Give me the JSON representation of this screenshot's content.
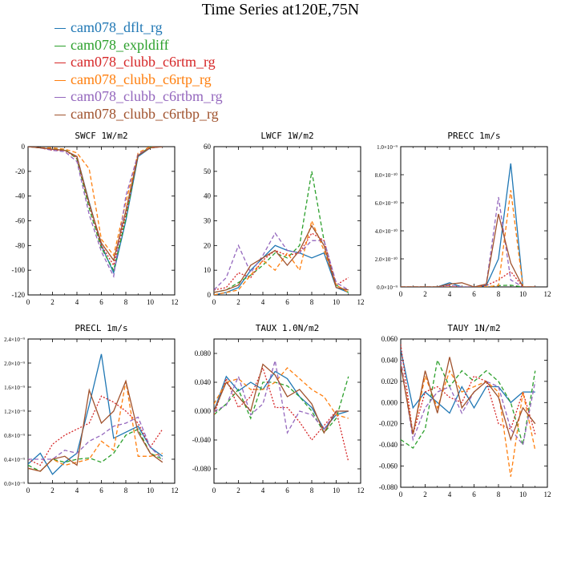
{
  "title": "Time Series at120E,75N",
  "colors": [
    "#1f77b4",
    "#2ca02c",
    "#d62728",
    "#ff7f0e",
    "#9467bd",
    "#a0522d"
  ],
  "styles": [
    "solid",
    "dashed",
    "dotted",
    "dashed",
    "dashed",
    "solid"
  ],
  "legend": [
    {
      "name": "cam078_dflt_rg"
    },
    {
      "name": "cam078_expldiff"
    },
    {
      "name": "cam078_clubb_c6rtm_rg"
    },
    {
      "name": "cam078_clubb_c6rtp_rg"
    },
    {
      "name": "cam078_clubb_c6rtbm_rg"
    },
    {
      "name": "cam078_clubb_c6rtbp_rg"
    }
  ],
  "chart_data": [
    {
      "type": "line",
      "title": "SWCF   1W/m2",
      "xlim": [
        0,
        12
      ],
      "ylim": [
        -120,
        0
      ],
      "xticks": [
        "0",
        "2",
        "4",
        "6",
        "8",
        "10",
        "12"
      ],
      "yticks": [
        {
          "v": 0,
          "t": "0"
        },
        {
          "v": -20,
          "t": "-20"
        },
        {
          "v": -40,
          "t": "-40"
        },
        {
          "v": -60,
          "t": "-60"
        },
        {
          "v": -80,
          "t": "-80"
        },
        {
          "v": -100,
          "t": "-100"
        },
        {
          "v": -120,
          "t": "-120"
        }
      ],
      "x": [
        0,
        1,
        2,
        3,
        4,
        5,
        6,
        7,
        8,
        9,
        10,
        11
      ],
      "series": [
        {
          "values": [
            0,
            -1,
            -2,
            -3,
            -8,
            -45,
            -80,
            -102,
            -60,
            -8,
            -1,
            0
          ]
        },
        {
          "values": [
            0,
            -1,
            -2,
            -2,
            -10,
            -50,
            -82,
            -100,
            -58,
            -7,
            0,
            0
          ]
        },
        {
          "values": [
            0,
            -1,
            -3,
            -3,
            -9,
            -47,
            -80,
            -96,
            -55,
            -7,
            -1,
            0
          ]
        },
        {
          "values": [
            0,
            -1,
            -1,
            -2,
            -5,
            -18,
            -75,
            -88,
            -45,
            -5,
            0,
            0
          ]
        },
        {
          "values": [
            0,
            -1,
            -3,
            -4,
            -12,
            -55,
            -85,
            -105,
            -40,
            -6,
            -1,
            0
          ]
        },
        {
          "values": [
            0,
            -1,
            -2,
            -3,
            -8,
            -46,
            -78,
            -92,
            -52,
            -7,
            -1,
            0
          ]
        }
      ]
    },
    {
      "type": "line",
      "title": "LWCF   1W/m2",
      "xlim": [
        0,
        12
      ],
      "ylim": [
        0,
        60
      ],
      "xticks": [
        "0",
        "2",
        "4",
        "6",
        "8",
        "10",
        "12"
      ],
      "yticks": [
        {
          "v": 0,
          "t": "0"
        },
        {
          "v": 10,
          "t": "10"
        },
        {
          "v": 20,
          "t": "20"
        },
        {
          "v": 30,
          "t": "30"
        },
        {
          "v": 40,
          "t": "40"
        },
        {
          "v": 50,
          "t": "50"
        },
        {
          "v": 60,
          "t": "60"
        }
      ],
      "x": [
        0,
        1,
        2,
        3,
        4,
        5,
        6,
        7,
        8,
        9,
        10,
        11
      ],
      "series": [
        {
          "values": [
            0,
            1,
            3,
            10,
            15,
            20,
            18,
            17,
            15,
            17,
            3,
            1
          ]
        },
        {
          "values": [
            1,
            2,
            5,
            8,
            12,
            17,
            15,
            20,
            50,
            22,
            4,
            1
          ]
        },
        {
          "values": [
            2,
            3,
            9,
            7,
            14,
            18,
            16,
            17,
            25,
            22,
            4,
            7
          ]
        },
        {
          "values": [
            0,
            1,
            2,
            8,
            14,
            10,
            17,
            10,
            30,
            18,
            4,
            1
          ]
        },
        {
          "values": [
            2,
            7,
            20,
            9,
            16,
            25,
            18,
            17,
            22,
            22,
            5,
            2
          ]
        },
        {
          "values": [
            1,
            2,
            4,
            12,
            15,
            18,
            12,
            18,
            28,
            20,
            3,
            2
          ]
        }
      ]
    },
    {
      "type": "line",
      "title": "PRECC   1m/s",
      "xlim": [
        0,
        12
      ],
      "ylim": [
        0,
        1e-09
      ],
      "xticks": [
        "0",
        "2",
        "4",
        "6",
        "8",
        "10",
        "12"
      ],
      "yticks": [
        {
          "v": 0,
          "t": "0.0×10⁻⁹"
        },
        {
          "v": 2e-10,
          "t": "2.0×10⁻¹⁰"
        },
        {
          "v": 4e-10,
          "t": "4.0×10⁻¹⁰"
        },
        {
          "v": 6e-10,
          "t": "6.0×10⁻¹⁰"
        },
        {
          "v": 8e-10,
          "t": "8.0×10⁻¹⁰"
        },
        {
          "v": 1e-09,
          "t": "1.0×10⁻⁹"
        }
      ],
      "x": [
        0,
        1,
        2,
        3,
        4,
        5,
        6,
        7,
        8,
        9,
        10,
        11
      ],
      "series": [
        {
          "values": [
            0,
            0,
            0,
            0,
            3e-11,
            0,
            0,
            1e-11,
            2e-10,
            8.8e-10,
            0,
            0
          ]
        },
        {
          "values": [
            0,
            0,
            0,
            0,
            0,
            0,
            0,
            0,
            1e-11,
            1.2e-11,
            0,
            0
          ]
        },
        {
          "values": [
            0,
            0,
            0,
            0,
            1e-11,
            0,
            0,
            1e-11,
            5e-11,
            1.1e-10,
            0,
            0
          ]
        },
        {
          "values": [
            0,
            0,
            0,
            0,
            0,
            0,
            0,
            0,
            1e-11,
            6.9e-10,
            0,
            0
          ]
        },
        {
          "values": [
            0,
            0,
            0,
            0,
            1e-11,
            0,
            0,
            2e-11,
            6.4e-10,
            5e-11,
            0,
            0
          ]
        },
        {
          "values": [
            0,
            0,
            0,
            0,
            2e-11,
            3e-11,
            0,
            2e-11,
            5.2e-10,
            1.7e-10,
            0,
            0
          ]
        }
      ]
    },
    {
      "type": "line",
      "title": "PRECL   1m/s",
      "xlim": [
        0,
        12
      ],
      "ylim": [
        0,
        2.4e-09
      ],
      "xticks": [
        "0",
        "2",
        "4",
        "6",
        "8",
        "10",
        "12"
      ],
      "yticks": [
        {
          "v": 0,
          "t": "0.0×10⁻⁹"
        },
        {
          "v": 4e-10,
          "t": "0.4×10⁻⁹"
        },
        {
          "v": 8e-10,
          "t": "0.8×10⁻⁹"
        },
        {
          "v": 1.2e-09,
          "t": "1.2×10⁻⁹"
        },
        {
          "v": 1.6e-09,
          "t": "1.6×10⁻⁹"
        },
        {
          "v": 2e-09,
          "t": "2.0×10⁻⁹"
        },
        {
          "v": 2.4e-09,
          "t": "2.4×10⁻⁹"
        }
      ],
      "x": [
        0,
        1,
        2,
        3,
        4,
        5,
        6,
        7,
        8,
        9,
        10,
        11
      ],
      "series": [
        {
          "values": [
            3.2e-10,
            5e-10,
            1.5e-10,
            3.5e-10,
            5e-10,
            1.3e-09,
            2.15e-09,
            7.5e-10,
            8.5e-10,
            9.5e-10,
            6e-10,
            4.5e-10
          ]
        },
        {
          "values": [
            3e-10,
            2e-10,
            4e-10,
            3.5e-10,
            4e-10,
            4.2e-10,
            3.5e-10,
            5e-10,
            8e-10,
            9e-10,
            5e-10,
            4e-10
          ]
        },
        {
          "values": [
            4e-10,
            3e-10,
            6.5e-10,
            8e-10,
            9e-10,
            1e-09,
            1.45e-09,
            1.35e-09,
            1.2e-09,
            1e-09,
            6e-10,
            9e-10
          ]
        },
        {
          "values": [
            2.5e-10,
            2e-10,
            4e-10,
            3e-10,
            3.5e-10,
            4e-10,
            7e-10,
            5.5e-10,
            1.7e-09,
            4.5e-10,
            4.5e-10,
            5e-10
          ]
        },
        {
          "values": [
            4e-10,
            4e-10,
            4e-10,
            5.5e-10,
            5e-10,
            7e-10,
            8e-10,
            9.5e-10,
            1e-09,
            1.1e-09,
            6e-10,
            4e-10
          ]
        },
        {
          "values": [
            2.5e-10,
            2e-10,
            4e-10,
            4.5e-10,
            3e-10,
            1.55e-09,
            1e-09,
            1.2e-09,
            1.7e-09,
            8.5e-10,
            5e-10,
            3.5e-10
          ]
        }
      ]
    },
    {
      "type": "line",
      "title": "TAUX   1.0N/m2",
      "xlim": [
        0,
        12
      ],
      "ylim": [
        -0.1,
        0.1
      ],
      "xticks": [
        "0",
        "2",
        "4",
        "6",
        "8",
        "10",
        "12"
      ],
      "yticks": [
        {
          "v": 0.08,
          "t": "0.080"
        },
        {
          "v": 0.04,
          "t": "0.040"
        },
        {
          "v": 0,
          "t": "0.000"
        },
        {
          "v": -0.04,
          "t": "-0.040"
        },
        {
          "v": -0.08,
          "t": "-0.080"
        }
      ],
      "x": [
        0,
        1,
        2,
        3,
        4,
        5,
        6,
        7,
        8,
        9,
        10,
        11
      ],
      "series": [
        {
          "values": [
            0.0,
            0.048,
            0.028,
            0.04,
            0.03,
            0.055,
            0.045,
            0.02,
            0.005,
            -0.025,
            -0.005,
            0.0
          ]
        },
        {
          "values": [
            -0.005,
            0.01,
            0.03,
            -0.01,
            0.04,
            0.04,
            0.035,
            0.02,
            0.0,
            -0.03,
            -0.01,
            0.048
          ]
        },
        {
          "values": [
            -0.005,
            0.045,
            0.005,
            0.02,
            0.06,
            0.005,
            0.005,
            -0.015,
            -0.04,
            -0.02,
            0.0,
            -0.07
          ]
        },
        {
          "values": [
            0.01,
            0.04,
            0.045,
            0.03,
            0.03,
            0.04,
            0.06,
            0.045,
            0.03,
            0.02,
            -0.005,
            -0.01
          ]
        },
        {
          "values": [
            0.0,
            0.008,
            0.048,
            -0.005,
            0.01,
            0.07,
            -0.03,
            0.0,
            -0.005,
            -0.025,
            0.0,
            0.0
          ]
        },
        {
          "values": [
            0.0,
            0.04,
            0.02,
            0.0,
            0.065,
            0.05,
            0.02,
            0.03,
            0.01,
            -0.03,
            0.0,
            0.0
          ]
        }
      ]
    },
    {
      "type": "line",
      "title": "TAUY   1N/m2",
      "xlim": [
        0,
        12
      ],
      "ylim": [
        -0.08,
        0.06
      ],
      "xticks": [
        "0",
        "2",
        "4",
        "6",
        "8",
        "10",
        "12"
      ],
      "yticks": [
        {
          "v": 0.06,
          "t": "0.060"
        },
        {
          "v": 0.04,
          "t": "0.040"
        },
        {
          "v": 0.02,
          "t": "0.020"
        },
        {
          "v": 0,
          "t": "0.000"
        },
        {
          "v": -0.02,
          "t": "-0.020"
        },
        {
          "v": -0.04,
          "t": "-0.040"
        },
        {
          "v": -0.06,
          "t": "-0.060"
        },
        {
          "v": -0.08,
          "t": "-0.080"
        }
      ],
      "x": [
        0,
        1,
        2,
        3,
        4,
        5,
        6,
        7,
        8,
        9,
        10,
        11
      ],
      "series": [
        {
          "values": [
            0.05,
            -0.005,
            0.01,
            0.0,
            -0.01,
            0.015,
            -0.005,
            0.015,
            0.015,
            0.0,
            0.01,
            0.01
          ]
        },
        {
          "values": [
            -0.035,
            -0.043,
            -0.025,
            0.04,
            0.015,
            0.03,
            0.02,
            0.03,
            0.02,
            0.0,
            -0.04,
            0.03
          ]
        },
        {
          "values": [
            0.055,
            -0.03,
            0.01,
            0.015,
            0.005,
            0.0,
            0.025,
            0.02,
            -0.02,
            -0.025,
            0.01,
            -0.03
          ]
        },
        {
          "values": [
            0.04,
            -0.03,
            0.025,
            -0.005,
            0.03,
            0.01,
            0.015,
            0.02,
            0.01,
            -0.07,
            0.01,
            -0.045
          ]
        },
        {
          "values": [
            0.04,
            -0.035,
            -0.005,
            0.01,
            0.015,
            -0.01,
            0.01,
            0.02,
            0.015,
            -0.025,
            -0.04,
            0.02
          ]
        },
        {
          "values": [
            0.035,
            -0.03,
            0.03,
            -0.01,
            0.043,
            -0.005,
            0.01,
            0.02,
            0.005,
            -0.035,
            -0.005,
            -0.02
          ]
        }
      ]
    }
  ]
}
